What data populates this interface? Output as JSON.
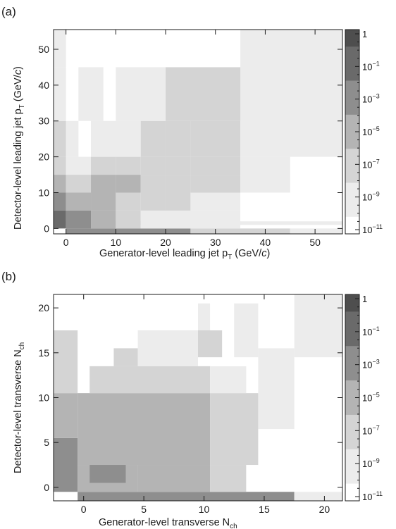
{
  "chart_data": [
    {
      "type": "heatmap",
      "panel_label": "(a)",
      "xlabel": {
        "main": "Generator-level leading jet p",
        "sub": "T",
        "unit_pre": " (GeV/",
        "unit_it": "c",
        "unit_post": ")"
      },
      "ylabel": {
        "main": "Detector-level leading jet p",
        "sub": "T",
        "unit_pre": " (GeV/",
        "unit_it": "c",
        "unit_post": ")"
      },
      "xlim": [
        -2.5,
        55.5
      ],
      "ylim": [
        -1.5,
        55.5
      ],
      "xticks": [
        0,
        10,
        20,
        30,
        40,
        50
      ],
      "yticks": [
        0,
        10,
        20,
        30,
        40,
        50
      ],
      "grid": false,
      "colorbar": {
        "scale": "log",
        "levels": [
          "1",
          "10^-1",
          "10^-3",
          "10^-5",
          "10^-7",
          "10^-9",
          "10^-11"
        ],
        "labels": [
          {
            "base": "1",
            "exp": ""
          },
          {
            "base": "10",
            "exp": "−1"
          },
          {
            "base": "10",
            "exp": "−3"
          },
          {
            "base": "10",
            "exp": "−5"
          },
          {
            "base": "10",
            "exp": "−7"
          },
          {
            "base": "10",
            "exp": "−9"
          },
          {
            "base": "10",
            "exp": "−11"
          }
        ]
      },
      "cells": [
        [
          -2.5,
          55.5,
          1,
          2,
          0.5
        ],
        [
          0,
          25,
          -1.5,
          0,
          4
        ],
        [
          25,
          45,
          -1.5,
          0,
          2
        ],
        [
          -2.5,
          0,
          0,
          5,
          5
        ],
        [
          0,
          5,
          0,
          5,
          4
        ],
        [
          5,
          10,
          0,
          5,
          3
        ],
        [
          10,
          15,
          0,
          5,
          2
        ],
        [
          15,
          20,
          0,
          5,
          1
        ],
        [
          20,
          35,
          0,
          5,
          1
        ],
        [
          -2.5,
          0,
          5,
          10,
          4
        ],
        [
          0,
          5,
          5,
          10,
          3
        ],
        [
          5,
          10,
          5,
          10,
          3
        ],
        [
          10,
          15,
          5,
          10,
          2
        ],
        [
          15,
          20,
          5,
          10,
          2
        ],
        [
          20,
          25,
          5,
          10,
          2
        ],
        [
          25,
          35,
          5,
          10,
          1
        ],
        [
          -2.5,
          0,
          10,
          15,
          3
        ],
        [
          0,
          5,
          10,
          15,
          2
        ],
        [
          5,
          10,
          10,
          15,
          3
        ],
        [
          10,
          15,
          10,
          15,
          3
        ],
        [
          15,
          20,
          10,
          15,
          2
        ],
        [
          20,
          25,
          10,
          15,
          2
        ],
        [
          25,
          35,
          10,
          15,
          2
        ],
        [
          35,
          45,
          10,
          15,
          1
        ],
        [
          -2.5,
          0,
          15,
          20,
          2
        ],
        [
          0,
          5,
          15,
          20,
          1
        ],
        [
          5,
          10,
          15,
          20,
          2
        ],
        [
          10,
          15,
          15,
          20,
          2
        ],
        [
          15,
          20,
          15,
          20,
          2
        ],
        [
          20,
          25,
          15,
          20,
          2
        ],
        [
          25,
          35,
          15,
          20,
          2
        ],
        [
          35,
          45,
          15,
          20,
          1
        ],
        [
          -2.5,
          0,
          20,
          30,
          2
        ],
        [
          0,
          2.5,
          20,
          30,
          1
        ],
        [
          5,
          15,
          20,
          30,
          1
        ],
        [
          15,
          20,
          20,
          30,
          2
        ],
        [
          20,
          25,
          20,
          30,
          2
        ],
        [
          25,
          35,
          20,
          30,
          2
        ],
        [
          35,
          45,
          20,
          30,
          1
        ],
        [
          -2.5,
          0,
          30,
          45,
          1
        ],
        [
          2.5,
          7.5,
          30,
          45,
          1
        ],
        [
          10,
          20,
          30,
          45,
          1
        ],
        [
          20,
          35,
          30,
          45,
          2
        ],
        [
          35,
          45,
          30,
          45,
          2
        ],
        [
          -2.5,
          0,
          45,
          55.5,
          1
        ],
        [
          35,
          55.5,
          20,
          55.5,
          1
        ],
        [
          45,
          55.5,
          -1.5,
          0,
          1
        ]
      ]
    },
    {
      "type": "heatmap",
      "panel_label": "(b)",
      "xlabel": {
        "main": "Generator-level transverse N",
        "sub": "ch"
      },
      "ylabel": {
        "main": "Detector-level transverse N",
        "sub": "ch"
      },
      "xlim": [
        -2.5,
        21.5
      ],
      "ylim": [
        -1.5,
        21.5
      ],
      "xticks": [
        0,
        5,
        10,
        15,
        20
      ],
      "yticks": [
        0,
        5,
        10,
        15,
        20
      ],
      "grid": false,
      "colorbar": {
        "scale": "log",
        "levels": [
          "1",
          "10^-1",
          "10^-3",
          "10^-5",
          "10^-7",
          "10^-9",
          "10^-11"
        ],
        "labels": [
          {
            "base": "1",
            "exp": ""
          },
          {
            "base": "10",
            "exp": "−1"
          },
          {
            "base": "10",
            "exp": "−3"
          },
          {
            "base": "10",
            "exp": "−5"
          },
          {
            "base": "10",
            "exp": "−7"
          },
          {
            "base": "10",
            "exp": "−9"
          },
          {
            "base": "10",
            "exp": "−11"
          }
        ]
      },
      "cells": [
        [
          -0.5,
          17.5,
          -1.5,
          -0.5,
          4
        ],
        [
          17.5,
          21.5,
          -1.5,
          -0.5,
          1
        ],
        [
          -2.5,
          -0.5,
          -0.5,
          5.5,
          4
        ],
        [
          -0.5,
          4.5,
          -0.5,
          2.5,
          3
        ],
        [
          0.5,
          3.5,
          0.5,
          3.5,
          4
        ],
        [
          4.5,
          10.5,
          -0.5,
          2.5,
          3
        ],
        [
          10.5,
          13.5,
          -0.5,
          2.5,
          2
        ],
        [
          -2.5,
          -0.5,
          5.5,
          10.5,
          3
        ],
        [
          -0.5,
          10.5,
          2.5,
          10.5,
          3
        ],
        [
          0.5,
          9.5,
          4.5,
          6.5,
          3
        ],
        [
          10.5,
          14.5,
          2.5,
          10.5,
          2
        ],
        [
          -2.5,
          -0.5,
          10.5,
          17.5,
          2
        ],
        [
          0.5,
          10.5,
          10.5,
          13.5,
          2
        ],
        [
          10.5,
          13.5,
          10.5,
          13.5,
          1
        ],
        [
          14.5,
          17.5,
          6.5,
          15.5,
          1
        ],
        [
          2.5,
          4.5,
          13.5,
          15.5,
          2
        ],
        [
          4.5,
          9.5,
          13.5,
          17.5,
          1
        ],
        [
          9.5,
          11.5,
          14.5,
          17.5,
          2
        ],
        [
          12.5,
          14.5,
          14.5,
          20.5,
          1
        ],
        [
          9.5,
          10.5,
          17.5,
          20.5,
          1
        ],
        [
          17.5,
          21.5,
          14.5,
          21.5,
          1
        ]
      ]
    }
  ]
}
